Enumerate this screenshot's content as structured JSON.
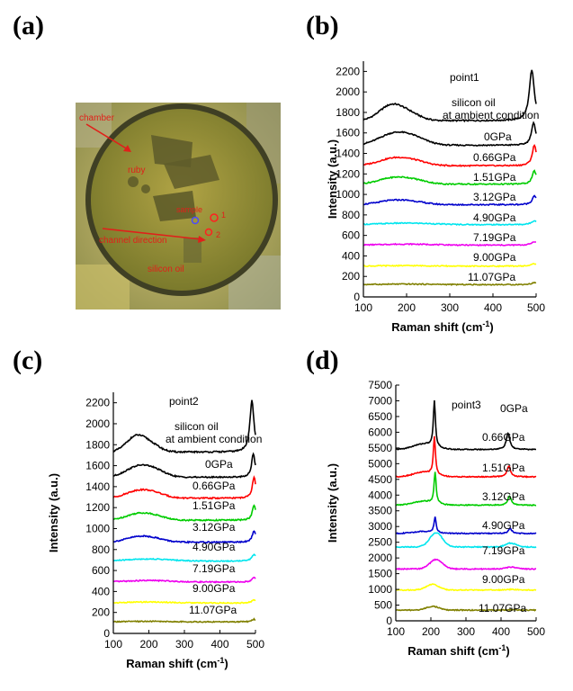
{
  "panels": [
    "(a)",
    "(b)",
    "(c)",
    "(d)"
  ],
  "photo": {
    "labels": {
      "chamber": "chamber",
      "ruby": "ruby",
      "sample": "sample",
      "point1": "1",
      "point2": "2",
      "channel": "channel direction",
      "oil": "silicon oil"
    },
    "colors": {
      "background": "#c9b86a",
      "chamber": "#8f8a33",
      "label": "#e0201a",
      "edge": "#4a4a2a"
    }
  },
  "chart_data": [
    {
      "panel": "(b)",
      "type": "line",
      "title": "point1",
      "xlabel": "Raman shift (cm-1)",
      "ylabel": "Intensity (a.u.)",
      "xlim": [
        100,
        500
      ],
      "ylim": [
        0,
        2300
      ],
      "xticks": [
        100,
        200,
        300,
        400,
        500
      ],
      "yticks": [
        0,
        200,
        400,
        600,
        800,
        1000,
        1200,
        1400,
        1600,
        1800,
        2000,
        2200
      ],
      "series": [
        {
          "name": "silicon oil at ambient condition",
          "color": "#000000",
          "base": 1720,
          "shape": "oil",
          "peak_at": 490,
          "peak_height": 490,
          "hump_height": 150
        },
        {
          "name": "0GPa",
          "color": "#000000",
          "base": 1480,
          "shape": "si",
          "peak_at": 494,
          "peak_height": 220,
          "hump_height": 110
        },
        {
          "name": "0.66GPa",
          "color": "#ff0000",
          "base": 1280,
          "shape": "si",
          "peak_at": 496,
          "peak_height": 200,
          "hump_height": 70
        },
        {
          "name": "1.51GPa",
          "color": "#00cc00",
          "base": 1100,
          "shape": "si",
          "peak_at": 496,
          "peak_height": 130,
          "hump_height": 60
        },
        {
          "name": "3.12GPa",
          "color": "#0000cc",
          "base": 900,
          "shape": "si",
          "peak_at": 496,
          "peak_height": 90,
          "hump_height": 40
        },
        {
          "name": "4.90GPa",
          "color": "#00e5ee",
          "base": 705,
          "shape": "flat",
          "peak_at": 496,
          "peak_height": 40,
          "hump_height": 15
        },
        {
          "name": "7.19GPa",
          "color": "#ee00ee",
          "base": 505,
          "shape": "flat",
          "peak_at": 496,
          "peak_height": 35,
          "hump_height": 10
        },
        {
          "name": "9.00GPa",
          "color": "#ffff00",
          "base": 300,
          "shape": "flat",
          "peak_at": 496,
          "peak_height": 25,
          "hump_height": 5
        },
        {
          "name": "11.07GPa",
          "color": "#808000",
          "base": 120,
          "shape": "flat",
          "peak_at": 496,
          "peak_height": 20,
          "hump_height": 5
        }
      ]
    },
    {
      "panel": "(c)",
      "type": "line",
      "title": "point2",
      "xlabel": "Raman shift (cm-1)",
      "ylabel": "Intensity (a.u.)",
      "xlim": [
        100,
        500
      ],
      "ylim": [
        0,
        2300
      ],
      "xticks": [
        100,
        200,
        300,
        400,
        500
      ],
      "yticks": [
        0,
        200,
        400,
        600,
        800,
        1000,
        1200,
        1400,
        1600,
        1800,
        2000,
        2200
      ],
      "series": [
        {
          "name": "silicon oil at ambient condition",
          "color": "#000000",
          "base": 1730,
          "shape": "oil",
          "peak_at": 490,
          "peak_height": 490,
          "hump_height": 150
        },
        {
          "name": "0GPa",
          "color": "#000000",
          "base": 1490,
          "shape": "si",
          "peak_at": 494,
          "peak_height": 220,
          "hump_height": 100
        },
        {
          "name": "0.66GPa",
          "color": "#ff0000",
          "base": 1290,
          "shape": "si",
          "peak_at": 496,
          "peak_height": 200,
          "hump_height": 70
        },
        {
          "name": "1.51GPa",
          "color": "#00cc00",
          "base": 1080,
          "shape": "si",
          "peak_at": 496,
          "peak_height": 140,
          "hump_height": 60
        },
        {
          "name": "3.12GPa",
          "color": "#0000cc",
          "base": 870,
          "shape": "si",
          "peak_at": 496,
          "peak_height": 110,
          "hump_height": 50
        },
        {
          "name": "4.90GPa",
          "color": "#00e5ee",
          "base": 690,
          "shape": "flat",
          "peak_at": 496,
          "peak_height": 60,
          "hump_height": 20
        },
        {
          "name": "7.19GPa",
          "color": "#ee00ee",
          "base": 490,
          "shape": "flat",
          "peak_at": 496,
          "peak_height": 40,
          "hump_height": 15
        },
        {
          "name": "9.00GPa",
          "color": "#ffff00",
          "base": 290,
          "shape": "flat",
          "peak_at": 496,
          "peak_height": 30,
          "hump_height": 10
        },
        {
          "name": "11.07GPa",
          "color": "#808000",
          "base": 110,
          "shape": "flat",
          "peak_at": 496,
          "peak_height": 25,
          "hump_height": 5
        }
      ]
    },
    {
      "panel": "(d)",
      "type": "line",
      "title": "point3",
      "xlabel": "Raman shift (cm-1)",
      "ylabel": "Intensity (a.u.)",
      "xlim": [
        100,
        500
      ],
      "ylim": [
        0,
        7500
      ],
      "xticks": [
        100,
        200,
        300,
        400,
        500
      ],
      "yticks": [
        0,
        500,
        1000,
        1500,
        2000,
        2500,
        3000,
        3500,
        4000,
        4500,
        5000,
        5500,
        6000,
        6500,
        7000,
        7500
      ],
      "series": [
        {
          "name": "0GPa",
          "color": "#000000",
          "base": 5450,
          "shape": "sharp",
          "peak_at": 210,
          "peak_height": 1450,
          "second_at": 420,
          "second_height": 520
        },
        {
          "name": "0.66GPa",
          "color": "#ff0000",
          "base": 4580,
          "shape": "sharp",
          "peak_at": 210,
          "peak_height": 1200,
          "second_at": 422,
          "second_height": 350
        },
        {
          "name": "1.51GPa",
          "color": "#00cc00",
          "base": 3680,
          "shape": "sharp",
          "peak_at": 212,
          "peak_height": 1000,
          "second_at": 424,
          "second_height": 280
        },
        {
          "name": "3.12GPa",
          "color": "#0000cc",
          "base": 2780,
          "shape": "sharp",
          "peak_at": 212,
          "peak_height": 500,
          "second_at": 426,
          "second_height": 150
        },
        {
          "name": "4.90GPa",
          "color": "#00e5ee",
          "base": 2350,
          "shape": "broad",
          "peak_at": 215,
          "peak_height": 450,
          "second_at": 428,
          "second_height": 120
        },
        {
          "name": "7.19GPa",
          "color": "#ee00ee",
          "base": 1650,
          "shape": "broad",
          "peak_at": 215,
          "peak_height": 300,
          "second_at": 430,
          "second_height": 60
        },
        {
          "name": "9.00GPa",
          "color": "#ffff00",
          "base": 980,
          "shape": "broad",
          "peak_at": 205,
          "peak_height": 180,
          "second_at": 430,
          "second_height": 20
        },
        {
          "name": "11.07GPa",
          "color": "#808000",
          "base": 340,
          "shape": "broad",
          "peak_at": 205,
          "peak_height": 120,
          "second_at": 430,
          "second_height": 10
        }
      ]
    }
  ]
}
